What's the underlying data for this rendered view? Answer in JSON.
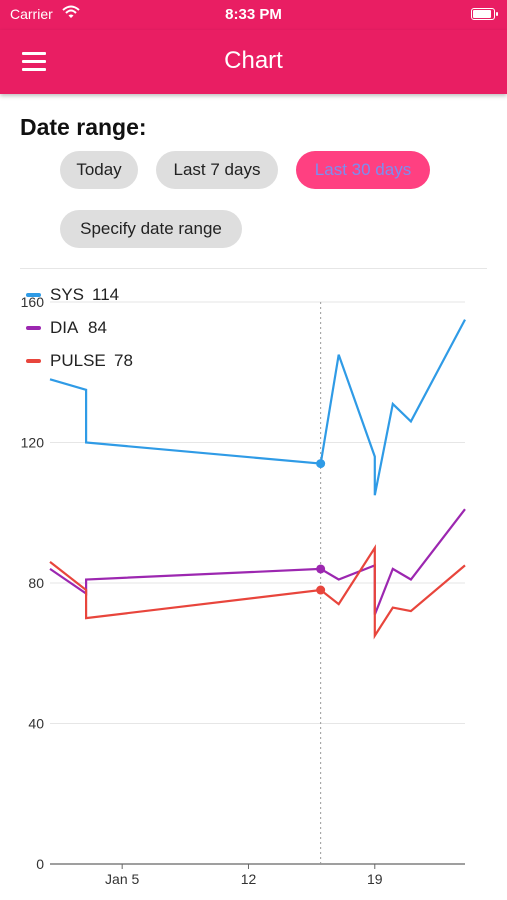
{
  "status_bar": {
    "carrier": "Carrier",
    "time": "8:33 PM"
  },
  "app_bar": {
    "title": "Chart",
    "menu_icon": "hamburger-menu-icon"
  },
  "date_range": {
    "label": "Date range:",
    "options": [
      {
        "label": "Today",
        "selected": false
      },
      {
        "label": "Last 7 days",
        "selected": false
      },
      {
        "label": "Last 30 days",
        "selected": true
      },
      {
        "label": "Specify date range",
        "selected": false
      }
    ]
  },
  "colors": {
    "accent": "#e91e63",
    "chip_selected": "#ff4081",
    "sys": "#2f9be6",
    "dia": "#9c27b0",
    "pulse": "#e8453c"
  },
  "chart_data": {
    "type": "line",
    "title": "",
    "xlabel": "",
    "ylabel": "",
    "ylim": [
      0,
      160
    ],
    "y_ticks": [
      0,
      40,
      80,
      120,
      160
    ],
    "x_range": [
      "2023-01-01",
      "2023-01-24"
    ],
    "x_ticks": [
      {
        "date": "2023-01-05",
        "label": "Jan 5"
      },
      {
        "date": "2023-01-12",
        "label": "12"
      },
      {
        "date": "2023-01-19",
        "label": "19"
      }
    ],
    "grid": "horizontal",
    "legend_position": "top-left",
    "selected_x": "2023-01-16",
    "series": [
      {
        "name": "SYS",
        "selected_value": "114",
        "points": [
          [
            "2023-01-01",
            138
          ],
          [
            "2023-01-03",
            135
          ],
          [
            "2023-01-03",
            120
          ],
          [
            "2023-01-16",
            114
          ],
          [
            "2023-01-17",
            145
          ],
          [
            "2023-01-19",
            116
          ],
          [
            "2023-01-19",
            105
          ],
          [
            "2023-01-20",
            131
          ],
          [
            "2023-01-21",
            126
          ],
          [
            "2023-01-24",
            155
          ]
        ]
      },
      {
        "name": "DIA",
        "selected_value": "84",
        "points": [
          [
            "2023-01-01",
            84
          ],
          [
            "2023-01-03",
            77
          ],
          [
            "2023-01-03",
            81
          ],
          [
            "2023-01-16",
            84
          ],
          [
            "2023-01-17",
            81
          ],
          [
            "2023-01-19",
            85
          ],
          [
            "2023-01-19",
            71
          ],
          [
            "2023-01-20",
            84
          ],
          [
            "2023-01-21",
            81
          ],
          [
            "2023-01-24",
            101
          ]
        ]
      },
      {
        "name": "PULSE",
        "selected_value": "78",
        "points": [
          [
            "2023-01-01",
            86
          ],
          [
            "2023-01-03",
            78
          ],
          [
            "2023-01-03",
            70
          ],
          [
            "2023-01-16",
            78
          ],
          [
            "2023-01-17",
            74
          ],
          [
            "2023-01-19",
            90
          ],
          [
            "2023-01-19",
            65
          ],
          [
            "2023-01-20",
            73
          ],
          [
            "2023-01-21",
            72
          ],
          [
            "2023-01-24",
            85
          ]
        ]
      }
    ]
  }
}
